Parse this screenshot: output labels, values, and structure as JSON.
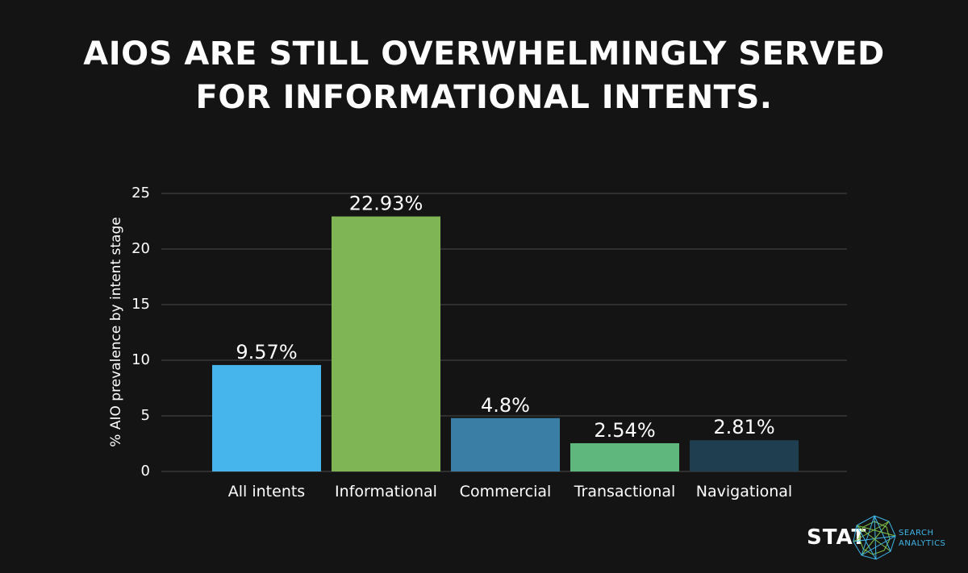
{
  "title_lines": [
    "AIOS ARE STILL OVERWHELMINGLY SERVED",
    "FOR INFORMATIONAL INTENTS."
  ],
  "chart_data": {
    "type": "bar",
    "title": "AIOS ARE STILL OVERWHELMINGLY SERVED FOR INFORMATIONAL INTENTS.",
    "xlabel": "",
    "ylabel": "% AIO prevalence by intent stage",
    "ylim": [
      0,
      25
    ],
    "yticks": [
      0,
      5,
      10,
      15,
      20,
      25
    ],
    "grid": true,
    "categories": [
      "All intents",
      "Informational",
      "Commercial",
      "Transactional",
      "Navigational"
    ],
    "values": [
      9.57,
      22.93,
      4.8,
      2.54,
      2.81
    ],
    "value_labels": [
      "9.57%",
      "22.93%",
      "4.8%",
      "2.54%",
      "2.81%"
    ],
    "colors": [
      "#45b5ec",
      "#7fb554",
      "#3a7ea6",
      "#5fb77d",
      "#1f3e50"
    ]
  },
  "logo": {
    "wordmark": "STAT",
    "subtitle_lines": [
      "SEARCH",
      "ANALYTICS"
    ]
  }
}
